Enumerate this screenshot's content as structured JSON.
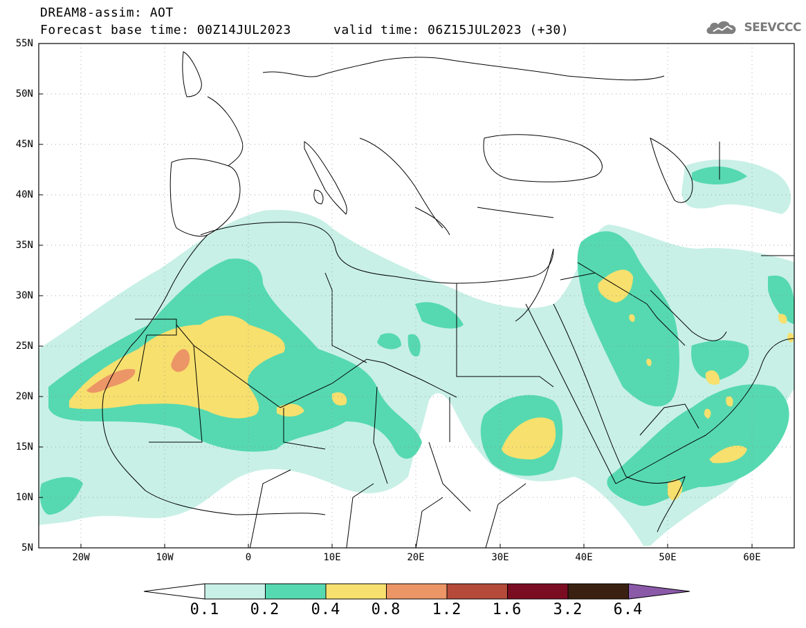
{
  "header": {
    "title": "DREAM8-assim: AOT",
    "base_time": "Forecast base time: 00Z14JUL2023",
    "valid_time": "valid time: 06Z15JUL2023 (+30)"
  },
  "logo": {
    "text": "SEEVCCC",
    "icon": "cloud-icon"
  },
  "axes": {
    "lat_labels": [
      "55N",
      "50N",
      "45N",
      "40N",
      "35N",
      "30N",
      "25N",
      "20N",
      "15N",
      "10N",
      "5N"
    ],
    "lon_labels": [
      "20W",
      "10W",
      "0",
      "10E",
      "20E",
      "30E",
      "40E",
      "50E",
      "60E"
    ],
    "lat_range": [
      5,
      55
    ],
    "lon_range": [
      -25,
      65
    ]
  },
  "legend": {
    "labels": [
      "0.1",
      "0.2",
      "0.4",
      "0.8",
      "1.2",
      "1.6",
      "3.2",
      "6.4"
    ],
    "colors": [
      "#ffffff",
      "#c8f0e6",
      "#56d9b0",
      "#f7e06e",
      "#ec9566",
      "#b54a3a",
      "#7a0d22",
      "#3a2010",
      "#8a5aa8"
    ]
  },
  "colors": {
    "level_0_1": "#c8f0e6",
    "level_0_2": "#56d9b0",
    "level_0_4": "#f7e06e",
    "level_0_8": "#ec9566",
    "boundary": "#000000"
  }
}
